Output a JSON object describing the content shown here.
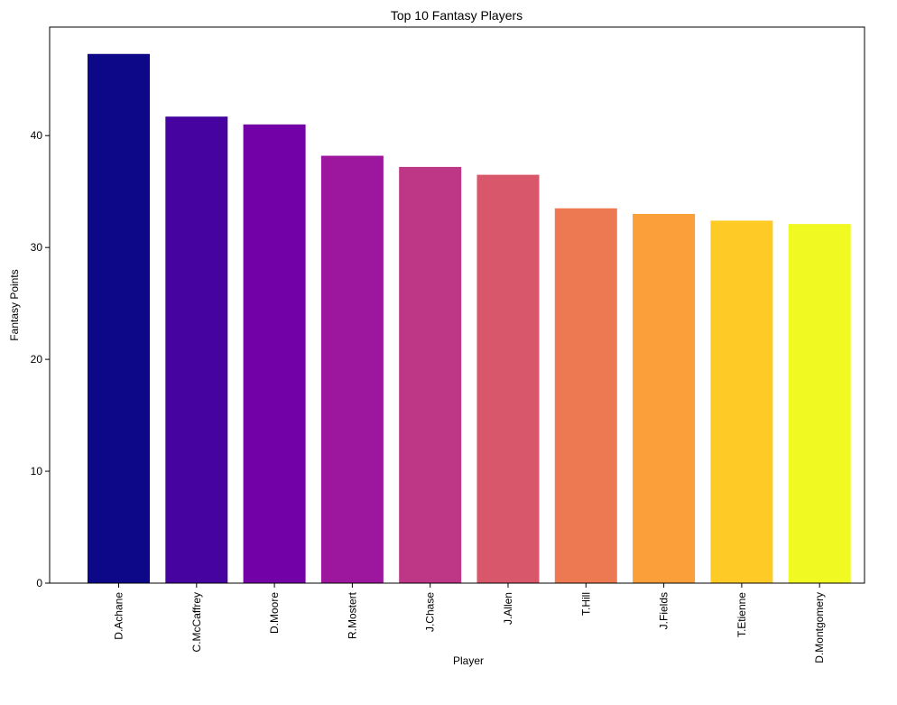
{
  "chart_data": {
    "type": "bar",
    "title": "Top 10 Fantasy Players",
    "xlabel": "Player",
    "ylabel": "Fantasy Points",
    "categories": [
      "D.Achane",
      "C.McCaffrey",
      "D.Moore",
      "R.Mostert",
      "J.Chase",
      "J.Allen",
      "T.Hill",
      "J.Fields",
      "T.Etienne",
      "D.Montgomery"
    ],
    "values": [
      47.3,
      41.7,
      41.0,
      38.2,
      37.2,
      36.5,
      33.5,
      33.0,
      32.4,
      32.1
    ],
    "colors": [
      "#0d0887",
      "#46039f",
      "#7201a8",
      "#9c179e",
      "#bd3786",
      "#d8576b",
      "#ed7953",
      "#fb9f3a",
      "#fdca26",
      "#f0f921"
    ],
    "ylim": [
      0,
      49.7
    ],
    "yticks": [
      0,
      10,
      20,
      30,
      40
    ],
    "grid": false,
    "legend": "none"
  }
}
